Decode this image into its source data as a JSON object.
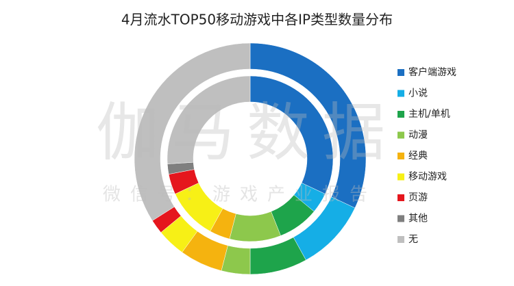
{
  "chart_data": {
    "type": "donut",
    "title": "4月流水TOP50移动游戏中各IP类型数量分布",
    "categories": [
      "客户端游戏",
      "小说",
      "主机/单机",
      "动漫",
      "经典",
      "移动游戏",
      "页游",
      "其他",
      "无"
    ],
    "colors": [
      "#1b6fc2",
      "#15aee6",
      "#1ea44b",
      "#8dc84c",
      "#f5b30f",
      "#f7f016",
      "#e5161d",
      "#7f7f7f",
      "#bfbfbf"
    ],
    "rings": [
      {
        "values": [
          16,
          5,
          4,
          2,
          3,
          2,
          1,
          0,
          17
        ]
      },
      {
        "values": [
          16,
          2,
          4,
          5,
          2,
          5,
          2,
          1,
          13
        ]
      }
    ],
    "legend": "right"
  },
  "watermark": [
    "伽马数据",
    "微信号：游戏产业报告"
  ]
}
